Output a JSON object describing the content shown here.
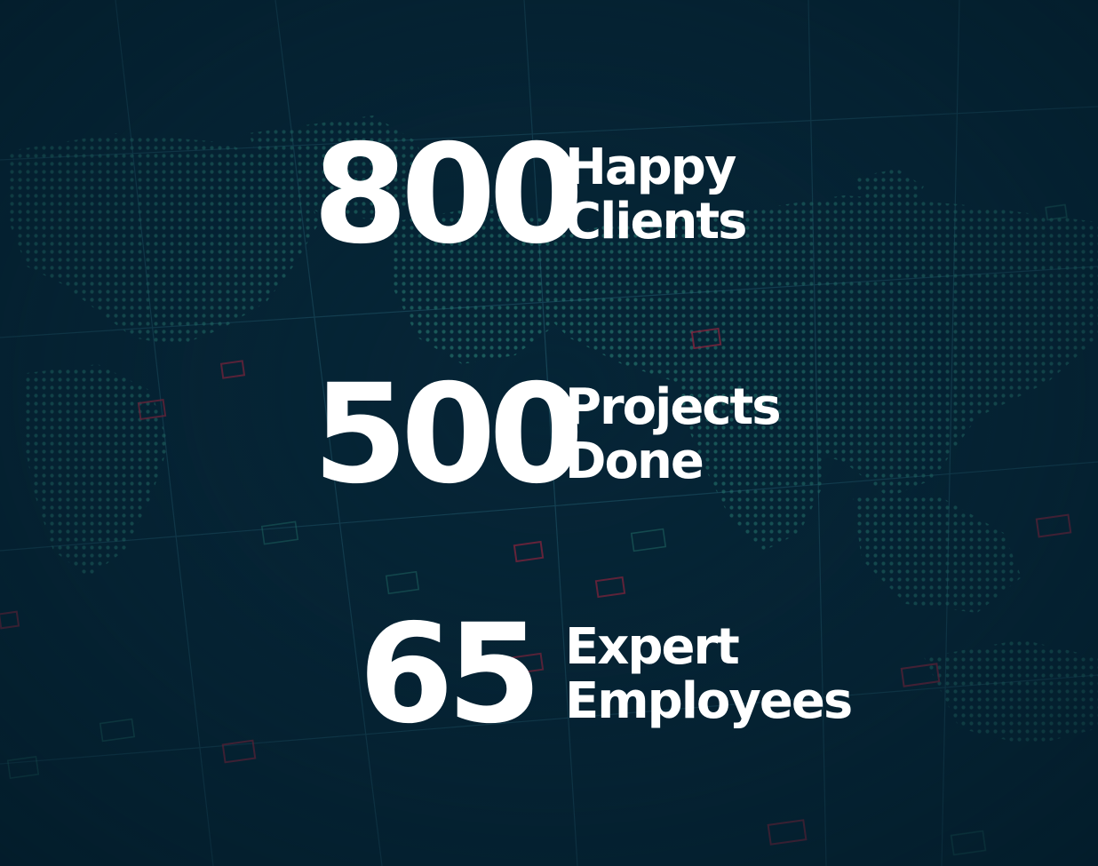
{
  "colors": {
    "background": "#062536",
    "dot": "#2f8f7f",
    "grid_line": "#1f5366",
    "marker": "#a3243f",
    "text": "#ffffff"
  },
  "background": {
    "icon": "world-map-dot-matrix"
  },
  "stats": [
    {
      "value": "800",
      "label_line1": "Happy",
      "label_line2": "Clients"
    },
    {
      "value": "500",
      "label_line1": "Projects",
      "label_line2": "Done"
    },
    {
      "value": "65",
      "label_line1": "Expert",
      "label_line2": "Employees"
    }
  ]
}
